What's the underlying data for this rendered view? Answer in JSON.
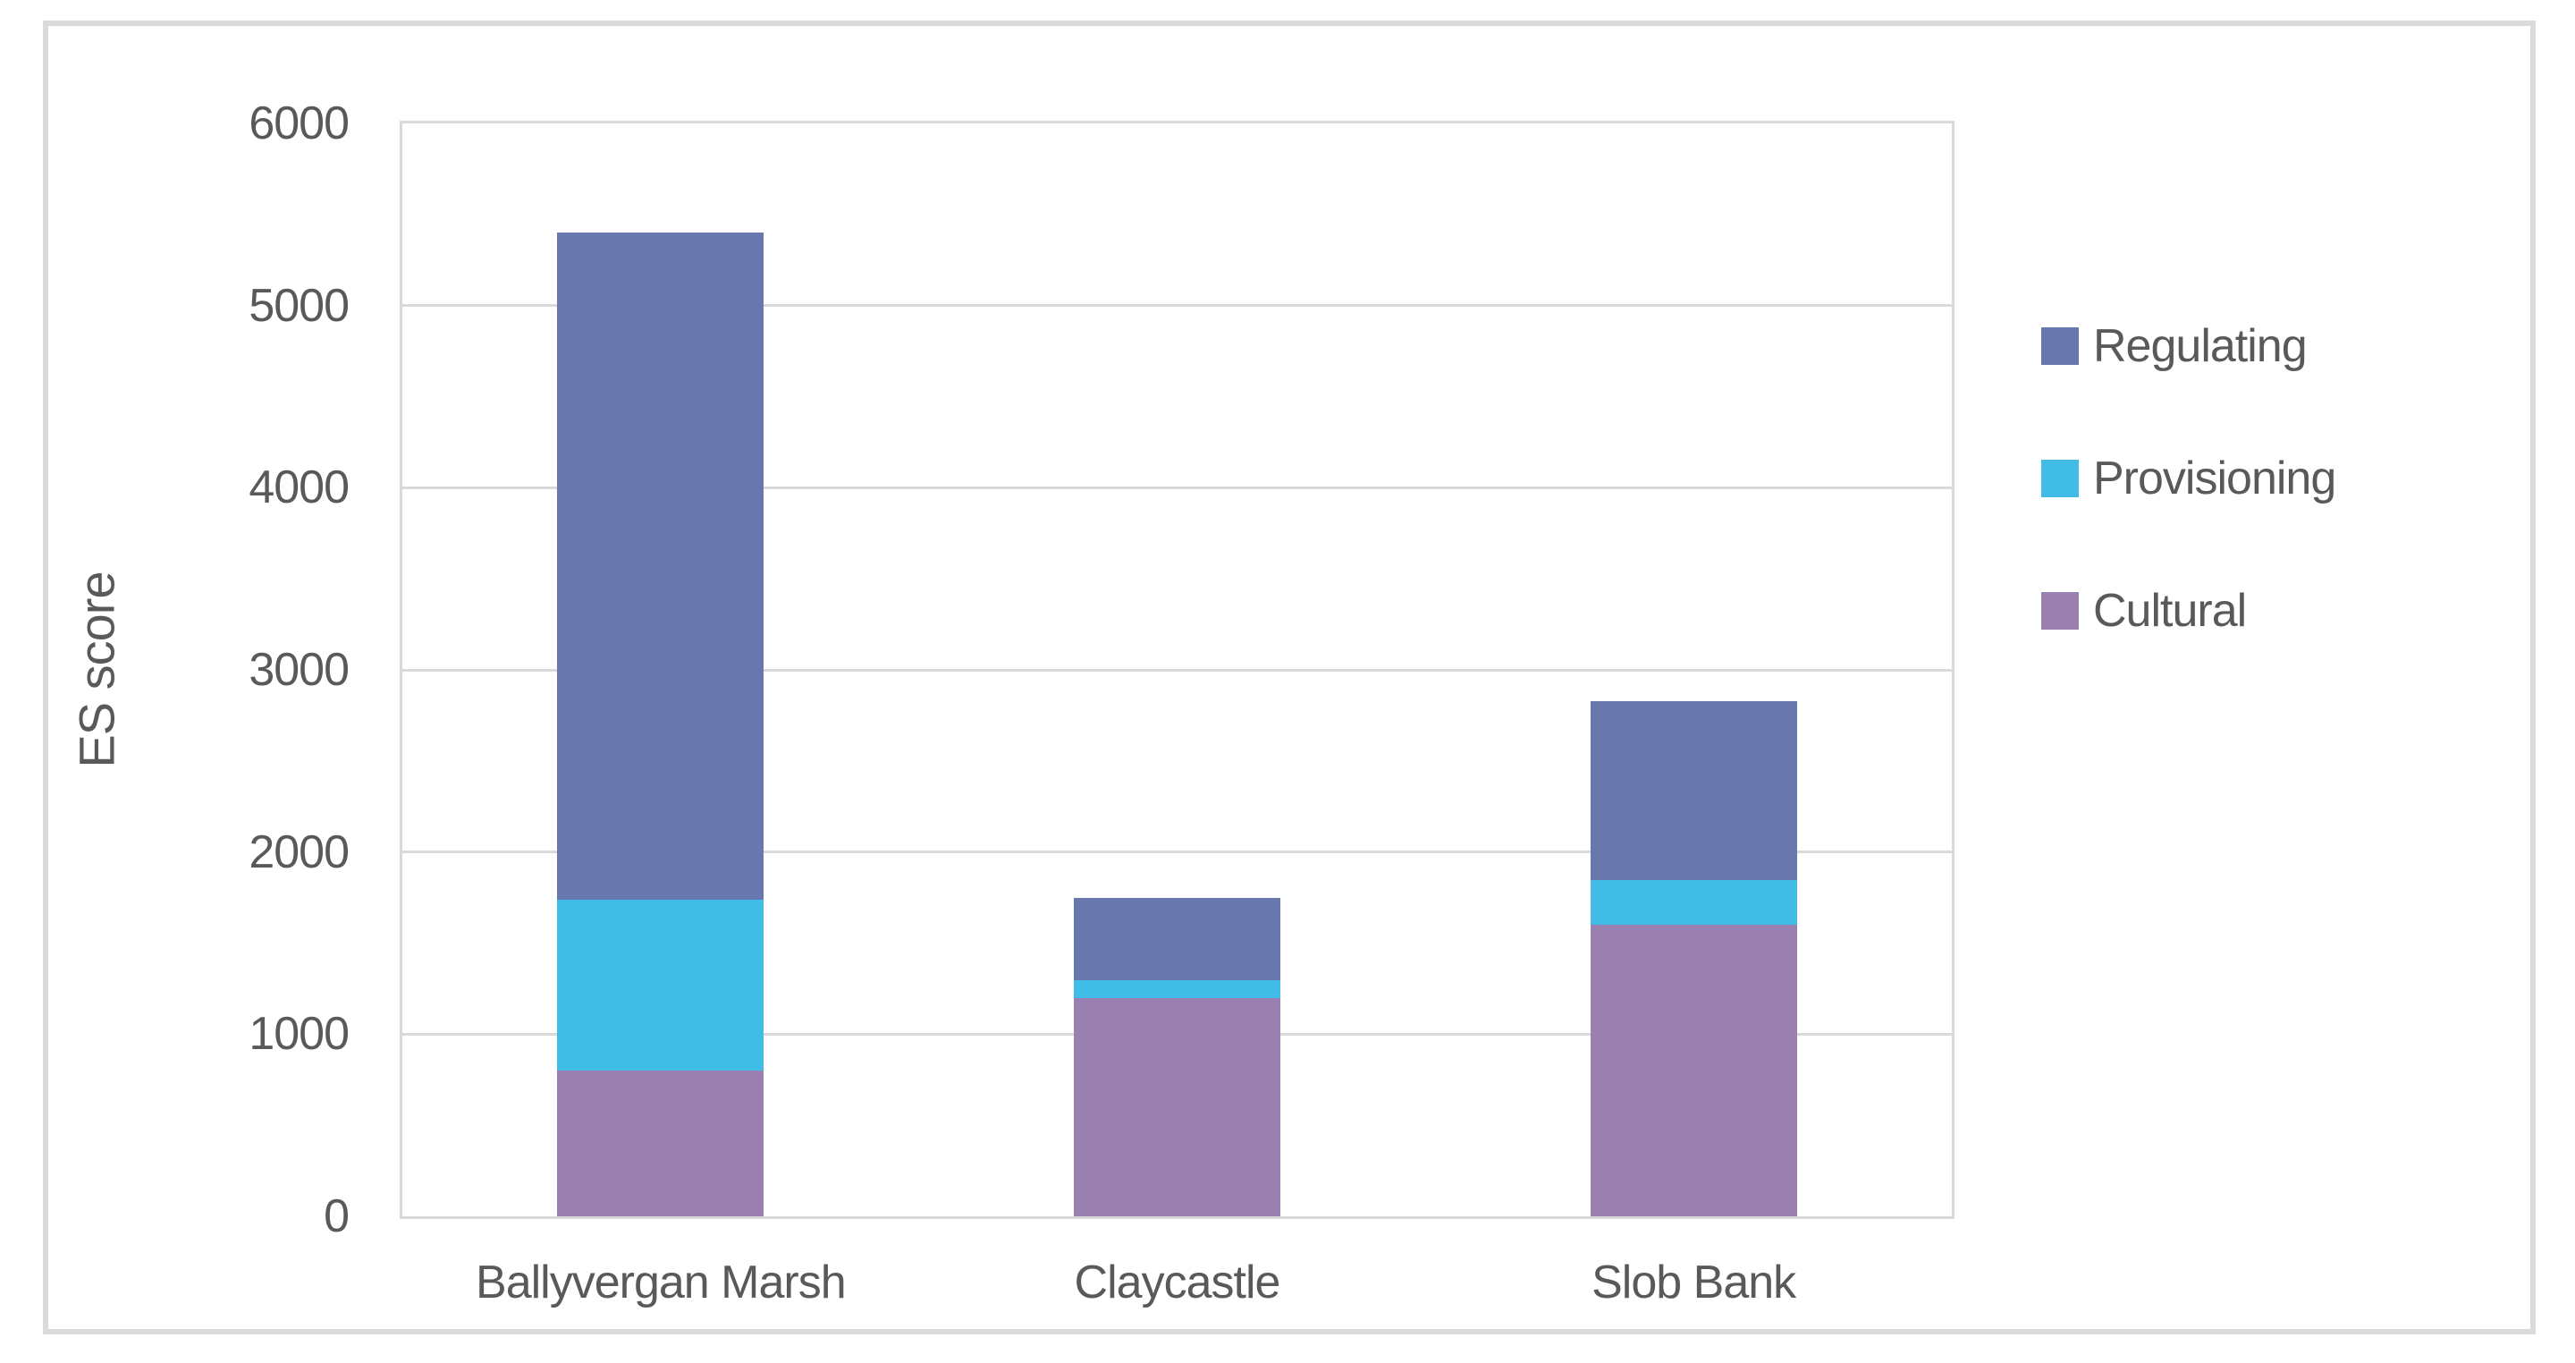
{
  "chart_data": {
    "type": "bar",
    "stacked": true,
    "title": "",
    "categories": [
      "Ballyvergan Marsh",
      "Claycastle",
      "Slob Bank"
    ],
    "series": [
      {
        "name": "Cultural",
        "color": "#9A80B0",
        "values": [
          800,
          1200,
          1600
        ]
      },
      {
        "name": "Provisioning",
        "color": "#41BCE6",
        "values": [
          940,
          95,
          245
        ]
      },
      {
        "name": "Regulating",
        "color": "#6878AE",
        "values": [
          3660,
          455,
          985
        ]
      }
    ],
    "totals": [
      5400,
      1750,
      2830
    ],
    "xlabel": "",
    "ylabel": "ES score",
    "ylim": [
      0,
      6000
    ],
    "yticks": [
      0,
      1000,
      2000,
      3000,
      4000,
      5000,
      6000
    ],
    "grid": true,
    "legend": {
      "position": "right",
      "order": [
        "Regulating",
        "Provisioning",
        "Cultural"
      ]
    }
  },
  "styles": {
    "text_color": "#595959",
    "gridline_color": "#D9D9D9",
    "chart_border_color": "#DADADA",
    "background": "#FFFFFF"
  }
}
